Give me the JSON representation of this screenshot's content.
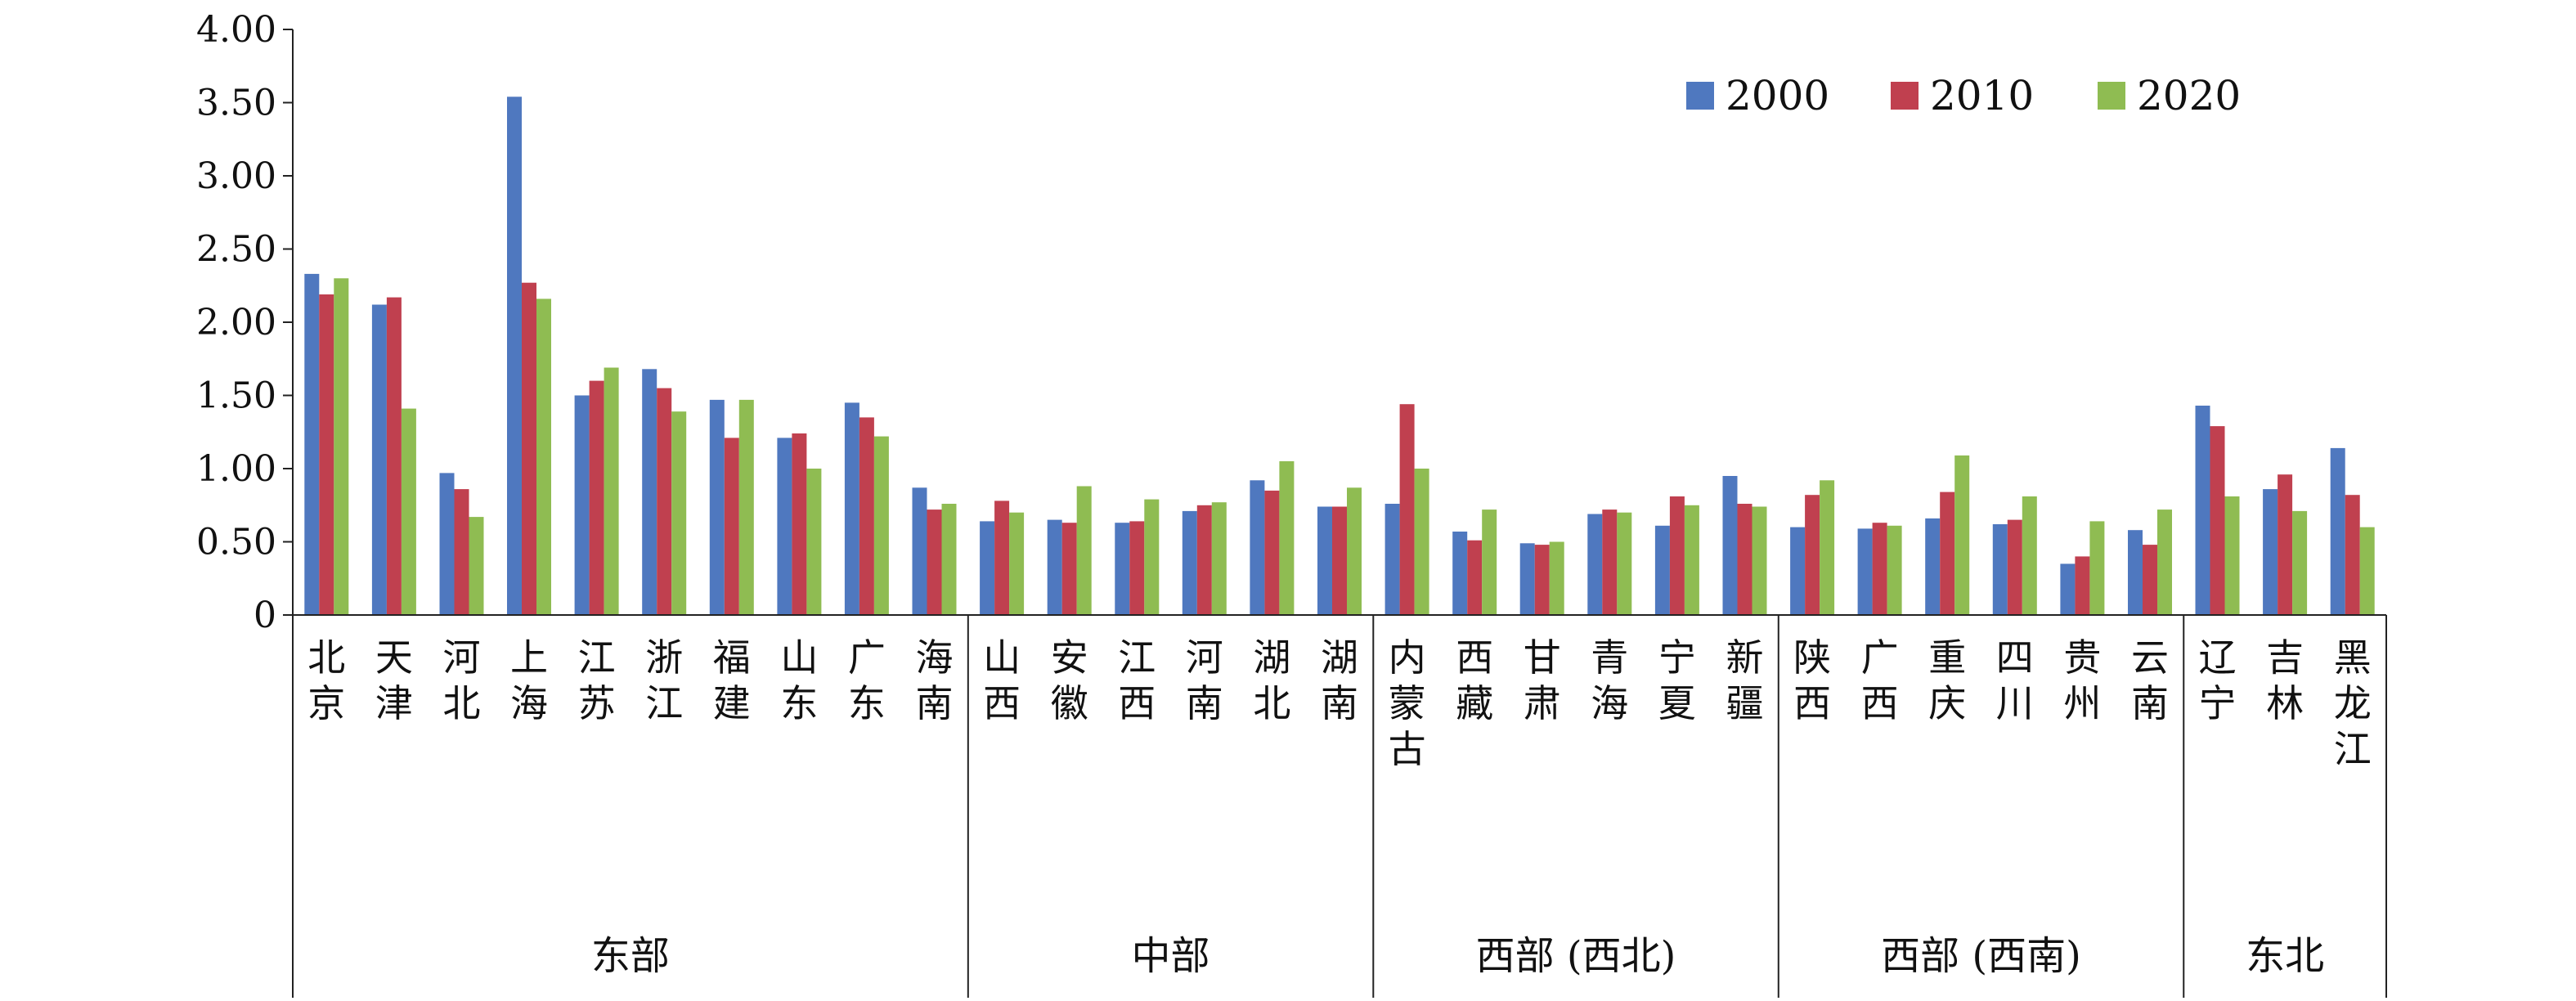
{
  "chart_data": {
    "type": "bar",
    "title": "",
    "xlabel": "",
    "ylabel": "",
    "ylim": [
      0,
      4.0
    ],
    "yticks": [
      "0",
      "0.50",
      "1.00",
      "1.50",
      "2.00",
      "2.50",
      "3.00",
      "3.50",
      "4.00"
    ],
    "grid": false,
    "legend_position": "top-right",
    "categories": [
      "北京",
      "天津",
      "河北",
      "上海",
      "江苏",
      "浙江",
      "福建",
      "山东",
      "广东",
      "海南",
      "山西",
      "安徽",
      "江西",
      "河南",
      "湖北",
      "湖南",
      "内蒙古",
      "西藏",
      "甘肃",
      "青海",
      "宁夏",
      "新疆",
      "陕西",
      "广西",
      "重庆",
      "四川",
      "贵州",
      "云南",
      "辽宁",
      "吉林",
      "黑龙江"
    ],
    "regions": [
      {
        "name": "东部",
        "count": 10
      },
      {
        "name": "中部",
        "count": 6
      },
      {
        "name": "西部 (西北)",
        "count": 6
      },
      {
        "name": "西部 (西南)",
        "count": 6
      },
      {
        "name": "东北",
        "count": 3
      }
    ],
    "series": [
      {
        "name": "2000",
        "color": "#4f78bf",
        "values": [
          2.33,
          2.12,
          0.97,
          3.54,
          1.5,
          1.68,
          1.47,
          1.21,
          1.45,
          0.87,
          0.64,
          0.65,
          0.63,
          0.71,
          0.92,
          0.74,
          0.76,
          0.57,
          0.49,
          0.69,
          0.61,
          0.95,
          0.6,
          0.59,
          0.66,
          0.62,
          0.35,
          0.58,
          1.43,
          0.86,
          1.14
        ]
      },
      {
        "name": "2010",
        "color": "#c0404f",
        "values": [
          2.19,
          2.17,
          0.86,
          2.27,
          1.6,
          1.55,
          1.21,
          1.24,
          1.35,
          0.72,
          0.78,
          0.63,
          0.64,
          0.75,
          0.85,
          0.74,
          1.44,
          0.51,
          0.48,
          0.72,
          0.81,
          0.76,
          0.82,
          0.63,
          0.84,
          0.65,
          0.4,
          0.48,
          1.29,
          0.96,
          0.82
        ]
      },
      {
        "name": "2020",
        "color": "#8fbc52",
        "values": [
          2.3,
          1.41,
          0.67,
          2.16,
          1.69,
          1.39,
          1.47,
          1.0,
          1.22,
          0.76,
          0.7,
          0.88,
          0.79,
          0.77,
          1.05,
          0.87,
          1.0,
          0.72,
          0.5,
          0.7,
          0.75,
          0.74,
          0.92,
          0.61,
          1.09,
          0.81,
          0.64,
          0.72,
          0.81,
          0.71,
          0.6
        ]
      }
    ]
  }
}
